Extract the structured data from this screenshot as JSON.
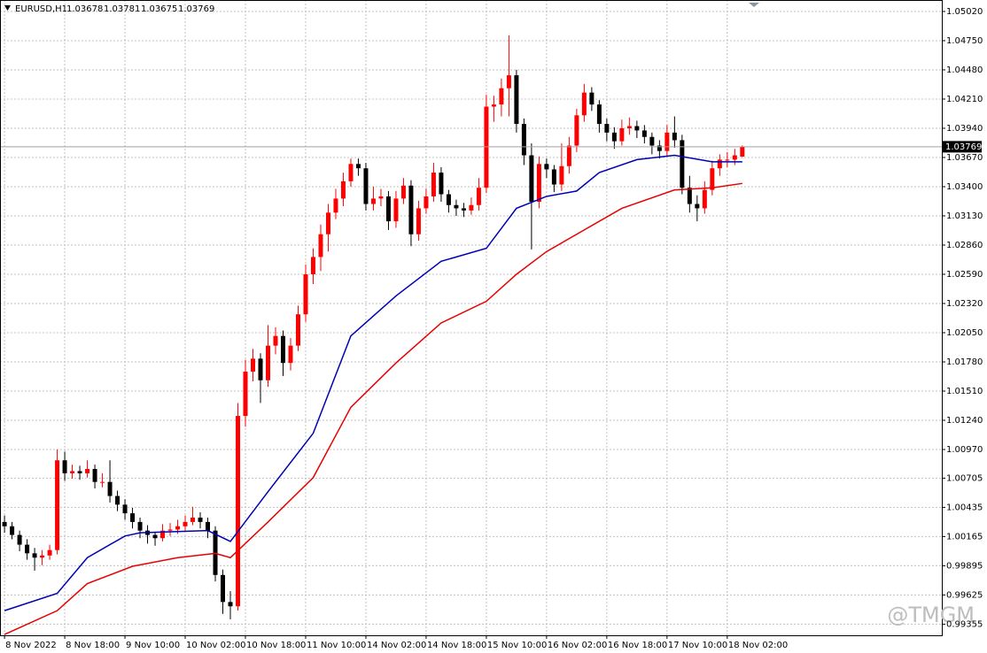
{
  "chart_data": {
    "type": "candlestick",
    "symbol": "EURUSD,H1",
    "watermark": "@TMGM",
    "up_color": "#ff0000",
    "down_color": "#000000",
    "xlim": [
      -0.6,
      124.5
    ],
    "xticks": [
      {
        "value": 0,
        "label": "8 Nov 2022"
      },
      {
        "value": 8,
        "label": "8 Nov 18:00"
      },
      {
        "value": 16,
        "label": "9 Nov 10:00"
      },
      {
        "value": 24,
        "label": "10 Nov 02:00"
      },
      {
        "value": 32,
        "label": "10 Nov 18:00"
      },
      {
        "value": 40,
        "label": "11 Nov 10:00"
      },
      {
        "value": 48,
        "label": "14 Nov 02:00"
      },
      {
        "value": 56,
        "label": "14 Nov 18:00"
      },
      {
        "value": 64,
        "label": "15 Nov 10:00"
      },
      {
        "value": 72,
        "label": "16 Nov 02:00"
      },
      {
        "value": 80,
        "label": "16 Nov 18:00"
      },
      {
        "value": 88,
        "label": "17 Nov 10:00"
      },
      {
        "value": 96,
        "label": "18 Nov 02:00"
      }
    ],
    "ylim": [
      0.99252,
      1.05126
    ],
    "yticks": [
      {
        "value": 1.0502,
        "label": "1.05020"
      },
      {
        "value": 1.0475,
        "label": "1.04750"
      },
      {
        "value": 1.0448,
        "label": "1.04480"
      },
      {
        "value": 1.0421,
        "label": "1.04210"
      },
      {
        "value": 1.0394,
        "label": "1.03940"
      },
      {
        "value": 1.0367,
        "label": "1.03670"
      },
      {
        "value": 1.034,
        "label": "1.03400"
      },
      {
        "value": 1.0313,
        "label": "1.03130"
      },
      {
        "value": 1.0286,
        "label": "1.02860"
      },
      {
        "value": 1.0259,
        "label": "1.02590"
      },
      {
        "value": 1.0232,
        "label": "1.02320"
      },
      {
        "value": 1.0205,
        "label": "1.02050"
      },
      {
        "value": 1.0178,
        "label": "1.01780"
      },
      {
        "value": 1.0151,
        "label": "1.01510"
      },
      {
        "value": 1.0124,
        "label": "1.01240"
      },
      {
        "value": 1.0097,
        "label": "1.00970"
      },
      {
        "value": 1.00705,
        "label": "1.00705"
      },
      {
        "value": 1.00435,
        "label": "1.00435"
      },
      {
        "value": 1.00165,
        "label": "1.00165"
      },
      {
        "value": 0.99895,
        "label": "0.99895"
      },
      {
        "value": 0.99625,
        "label": "0.99625"
      },
      {
        "value": 0.99355,
        "label": "0.99355"
      }
    ],
    "grid": true,
    "candles": [
      [
        1.003,
        1.0036,
        1.002,
        1.0026
      ],
      [
        1.0026,
        1.003,
        1.0014,
        1.0018
      ],
      [
        1.0018,
        1.0022,
        1.0003,
        1.0009
      ],
      [
        1.0009,
        1.0014,
        0.9995,
        1.0001
      ],
      [
        1.0001,
        1.0006,
        0.9985,
        0.9997
      ],
      [
        0.9997,
        1.0004,
        0.999,
        0.9999
      ],
      [
        0.9999,
        1.0009,
        0.9995,
        1.0004
      ],
      [
        1.0004,
        1.0097,
        1.0,
        1.0087
      ],
      [
        1.0087,
        1.0095,
        1.0068,
        1.0075
      ],
      [
        1.0075,
        1.0083,
        1.007,
        1.0077
      ],
      [
        1.0077,
        1.0082,
        1.0069,
        1.0075
      ],
      [
        1.0075,
        1.0087,
        1.0071,
        1.0079
      ],
      [
        1.0079,
        1.0083,
        1.0061,
        1.0067
      ],
      [
        1.0067,
        1.0075,
        1.0062,
        1.0067
      ],
      [
        1.0067,
        1.0087,
        1.0048,
        1.0054
      ],
      [
        1.0054,
        1.0059,
        1.004,
        1.0046
      ],
      [
        1.0046,
        1.0051,
        1.0032,
        1.0038
      ],
      [
        1.0038,
        1.0043,
        1.0024,
        1.003
      ],
      [
        1.003,
        1.0034,
        1.0015,
        1.0022
      ],
      [
        1.0022,
        1.0027,
        1.001,
        1.0018
      ],
      [
        1.0018,
        1.0021,
        1.0008,
        1.0015
      ],
      [
        1.0015,
        1.0028,
        1.0012,
        1.0022
      ],
      [
        1.0022,
        1.0029,
        1.0017,
        1.0023
      ],
      [
        1.0023,
        1.0032,
        1.0019,
        1.0026
      ],
      [
        1.0026,
        1.0036,
        1.0022,
        1.003
      ],
      [
        1.003,
        1.0044,
        1.0027,
        1.0034
      ],
      [
        1.0034,
        1.0039,
        1.0024,
        1.003
      ],
      [
        1.003,
        1.0034,
        1.0015,
        1.0022
      ],
      [
        1.0022,
        1.0026,
        0.9975,
        0.9981
      ],
      [
        0.9981,
        0.9986,
        0.9945,
        0.9956
      ],
      [
        0.9956,
        0.9966,
        0.994,
        0.9952
      ],
      [
        0.9952,
        1.014,
        0.9948,
        1.0128
      ],
      [
        1.0128,
        1.018,
        1.0118,
        1.0169
      ],
      [
        1.0169,
        1.019,
        1.016,
        1.0181
      ],
      [
        1.0181,
        1.0186,
        1.014,
        1.0161
      ],
      [
        1.0161,
        1.0212,
        1.0155,
        1.0193
      ],
      [
        1.0193,
        1.021,
        1.0185,
        1.0202
      ],
      [
        1.0202,
        1.0207,
        1.0165,
        1.0177
      ],
      [
        1.0177,
        1.02,
        1.017,
        1.0193
      ],
      [
        1.0193,
        1.023,
        1.0188,
        1.0222
      ],
      [
        1.0222,
        1.0268,
        1.0215,
        1.0259
      ],
      [
        1.0259,
        1.0283,
        1.025,
        1.0275
      ],
      [
        1.0275,
        1.0305,
        1.0262,
        1.0296
      ],
      [
        1.0296,
        1.0324,
        1.028,
        1.0316
      ],
      [
        1.0316,
        1.0338,
        1.031,
        1.0329
      ],
      [
        1.0329,
        1.0353,
        1.0322,
        1.0345
      ],
      [
        1.0345,
        1.0366,
        1.034,
        1.0361
      ],
      [
        1.0361,
        1.0366,
        1.035,
        1.0357
      ],
      [
        1.0357,
        1.0362,
        1.0318,
        1.0324
      ],
      [
        1.0324,
        1.034,
        1.0318,
        1.0329
      ],
      [
        1.0329,
        1.0338,
        1.0322,
        1.0331
      ],
      [
        1.0331,
        1.0336,
        1.03,
        1.0308
      ],
      [
        1.0308,
        1.0336,
        1.0302,
        1.0329
      ],
      [
        1.0329,
        1.0348,
        1.0324,
        1.0341
      ],
      [
        1.0341,
        1.0346,
        1.0285,
        1.0296
      ],
      [
        1.0296,
        1.0327,
        1.029,
        1.032
      ],
      [
        1.032,
        1.0338,
        1.0315,
        1.0331
      ],
      [
        1.0331,
        1.0362,
        1.0326,
        1.0353
      ],
      [
        1.0353,
        1.0358,
        1.0326,
        1.0333
      ],
      [
        1.0333,
        1.0337,
        1.0316,
        1.0323
      ],
      [
        1.0323,
        1.0328,
        1.0313,
        1.032
      ],
      [
        1.032,
        1.0325,
        1.0312,
        1.0318
      ],
      [
        1.0318,
        1.033,
        1.0314,
        1.0323
      ],
      [
        1.0323,
        1.0348,
        1.0318,
        1.0339
      ],
      [
        1.0339,
        1.0425,
        1.0334,
        1.0414
      ],
      [
        1.0414,
        1.0424,
        1.04,
        1.0416
      ],
      [
        1.0416,
        1.044,
        1.0405,
        1.0431
      ],
      [
        1.0431,
        1.048,
        1.0405,
        1.0443
      ],
      [
        1.0443,
        1.0448,
        1.039,
        1.0398
      ],
      [
        1.0398,
        1.0403,
        1.036,
        1.0369
      ],
      [
        1.0369,
        1.038,
        1.0282,
        1.0326
      ],
      [
        1.0326,
        1.0368,
        1.032,
        1.0361
      ],
      [
        1.0361,
        1.0366,
        1.0348,
        1.0356
      ],
      [
        1.0356,
        1.036,
        1.0335,
        1.0342
      ],
      [
        1.0342,
        1.038,
        1.0336,
        1.0359
      ],
      [
        1.0359,
        1.0386,
        1.0352,
        1.0378
      ],
      [
        1.0378,
        1.0412,
        1.0372,
        1.0406
      ],
      [
        1.0406,
        1.0435,
        1.04,
        1.0427
      ],
      [
        1.0427,
        1.0432,
        1.041,
        1.0416
      ],
      [
        1.0416,
        1.042,
        1.039,
        1.0398
      ],
      [
        1.0398,
        1.0403,
        1.0382,
        1.039
      ],
      [
        1.039,
        1.0395,
        1.0375,
        1.0382
      ],
      [
        1.0382,
        1.0402,
        1.0378,
        1.0394
      ],
      [
        1.0394,
        1.0404,
        1.0388,
        1.0396
      ],
      [
        1.0396,
        1.0401,
        1.0385,
        1.0392
      ],
      [
        1.0392,
        1.0397,
        1.038,
        1.0386
      ],
      [
        1.0386,
        1.039,
        1.037,
        1.0378
      ],
      [
        1.0378,
        1.0383,
        1.0366,
        1.0373
      ],
      [
        1.0373,
        1.0397,
        1.0368,
        1.039
      ],
      [
        1.039,
        1.0405,
        1.0376,
        1.0383
      ],
      [
        1.0383,
        1.0388,
        1.0333,
        1.0339
      ],
      [
        1.0339,
        1.035,
        1.0316,
        1.0324
      ],
      [
        1.0324,
        1.0332,
        1.0308,
        1.032
      ],
      [
        1.032,
        1.0345,
        1.0315,
        1.0337
      ],
      [
        1.0337,
        1.0364,
        1.0332,
        1.0357
      ],
      [
        1.0357,
        1.037,
        1.035,
        1.0365
      ],
      [
        1.0365,
        1.0372,
        1.0358,
        1.0365
      ],
      [
        1.0365,
        1.0375,
        1.036,
        1.0369
      ],
      [
        1.03678,
        1.03781,
        1.03675,
        1.03769
      ]
    ],
    "series": [
      {
        "color": "#0000b4",
        "x": [
          0,
          7,
          11,
          16,
          18,
          27,
          30,
          35,
          41,
          46,
          52,
          58,
          64,
          68,
          72,
          76,
          79,
          84,
          89,
          94,
          98
        ],
        "values": [
          0.9948,
          0.9964,
          0.9997,
          1.0017,
          1.002,
          1.0022,
          1.0012,
          1.0058,
          1.0112,
          1.0202,
          1.0239,
          1.0271,
          1.0283,
          1.032,
          1.0331,
          1.0336,
          1.0353,
          1.0365,
          1.0369,
          1.0363,
          1.0363
        ]
      },
      {
        "color": "#e60000",
        "x": [
          0,
          7,
          11,
          17,
          23,
          28,
          30,
          35,
          41,
          46,
          52,
          58,
          64,
          68,
          72,
          77,
          82,
          89,
          94,
          98
        ],
        "values": [
          0.9926,
          0.9948,
          0.9973,
          0.9989,
          0.9997,
          1.0001,
          0.9997,
          1.003,
          1.0071,
          1.0136,
          1.0177,
          1.0214,
          1.0234,
          1.0259,
          1.028,
          1.03,
          1.032,
          1.0337,
          1.0339,
          1.0343
        ]
      }
    ]
  }
}
